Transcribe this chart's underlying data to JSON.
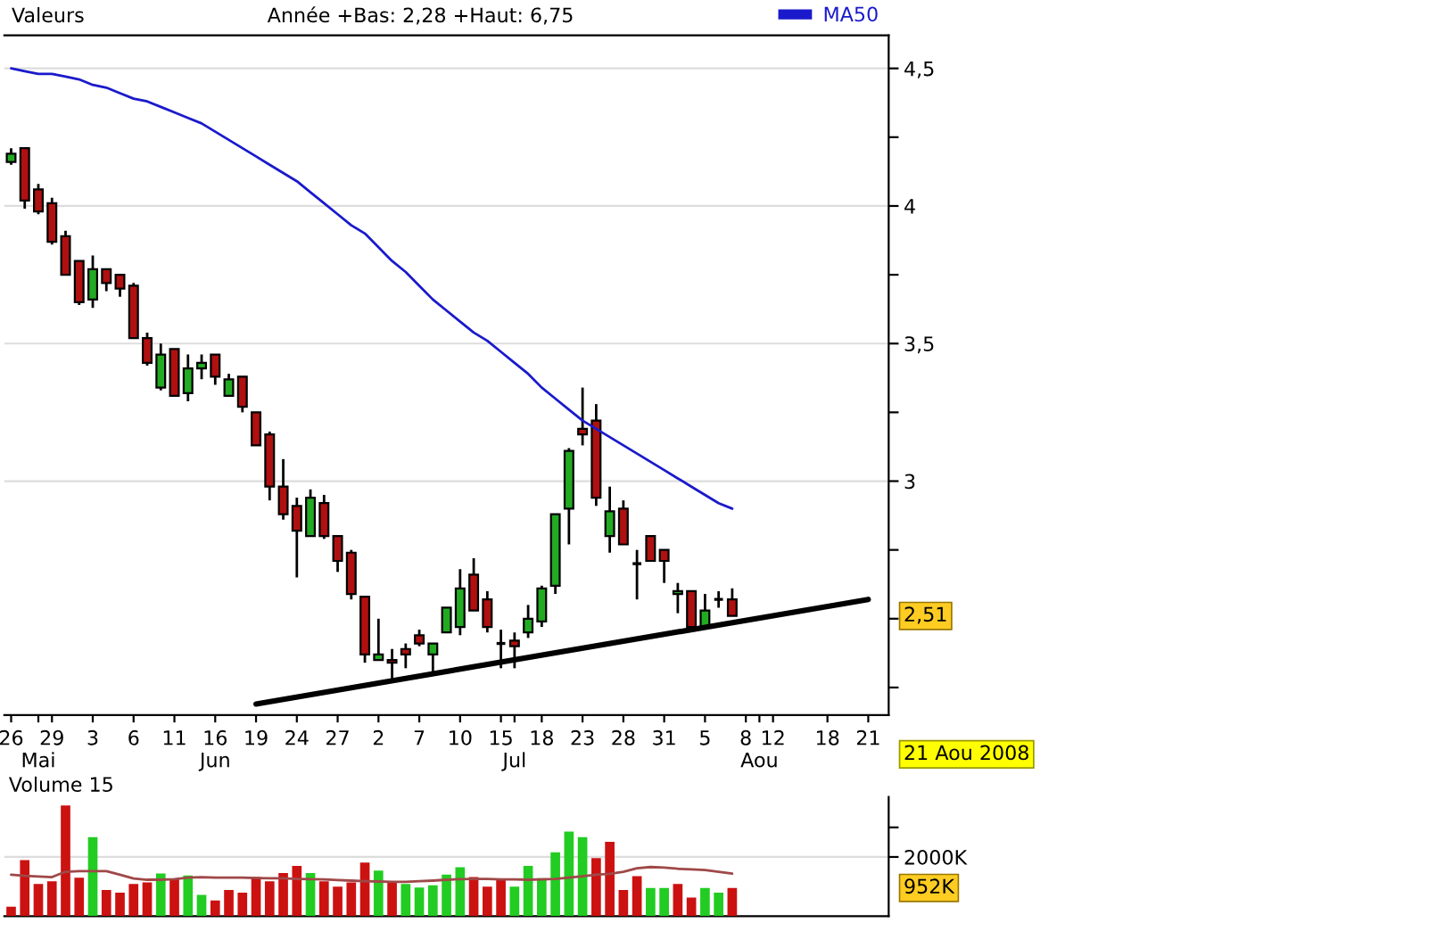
{
  "chart_data": [
    {
      "type": "candlestick",
      "title": "Valeurs",
      "subtitle": "Année +Bas: 2,28 +Haut: 6,75",
      "categories": [
        "26",
        null,
        "\nMai",
        "29",
        null,
        null,
        "3",
        null,
        null,
        "6",
        null,
        null,
        "11",
        null,
        null,
        "16\nJun",
        null,
        null,
        "19",
        null,
        null,
        "24",
        null,
        null,
        "27",
        null,
        null,
        "2",
        null,
        null,
        "7",
        null,
        null,
        "10",
        null,
        null,
        "15",
        "\nJul",
        null,
        "18",
        null,
        null,
        "23",
        null,
        null,
        "28",
        null,
        null,
        "31",
        null,
        null,
        "5",
        null,
        null,
        "8",
        "\nAou",
        "12",
        null,
        null,
        null,
        "18",
        null,
        null,
        "21",
        null
      ],
      "ohlc": [
        [
          4.16,
          4.21,
          4.15,
          4.19
        ],
        [
          4.21,
          4.21,
          3.99,
          4.02
        ],
        [
          4.06,
          4.08,
          3.97,
          3.98
        ],
        [
          4.01,
          4.03,
          3.86,
          3.87
        ],
        [
          3.89,
          3.91,
          3.75,
          3.75
        ],
        [
          3.8,
          3.8,
          3.64,
          3.65
        ],
        [
          3.66,
          3.82,
          3.63,
          3.77
        ],
        [
          3.77,
          3.77,
          3.69,
          3.72
        ],
        [
          3.75,
          3.75,
          3.67,
          3.7
        ],
        [
          3.71,
          3.72,
          3.52,
          3.52
        ],
        [
          3.52,
          3.54,
          3.42,
          3.43
        ],
        [
          3.34,
          3.5,
          3.33,
          3.46
        ],
        [
          3.48,
          3.48,
          3.31,
          3.31
        ],
        [
          3.32,
          3.46,
          3.29,
          3.41
        ],
        [
          3.41,
          3.46,
          3.37,
          3.43
        ],
        [
          3.46,
          3.46,
          3.35,
          3.38
        ],
        [
          3.31,
          3.39,
          3.31,
          3.37
        ],
        [
          3.38,
          3.38,
          3.25,
          3.27
        ],
        [
          3.25,
          3.25,
          3.13,
          3.13
        ],
        [
          3.17,
          3.18,
          2.93,
          2.98
        ],
        [
          2.98,
          3.08,
          2.86,
          2.88
        ],
        [
          2.91,
          2.94,
          2.65,
          2.82
        ],
        [
          2.8,
          2.97,
          2.8,
          2.94
        ],
        [
          2.92,
          2.95,
          2.79,
          2.8
        ],
        [
          2.8,
          2.8,
          2.67,
          2.71
        ],
        [
          2.74,
          2.75,
          2.57,
          2.59
        ],
        [
          2.58,
          2.58,
          2.34,
          2.37
        ],
        [
          2.35,
          2.5,
          2.35,
          2.37
        ],
        [
          2.35,
          2.39,
          2.28,
          2.34
        ],
        [
          2.39,
          2.41,
          2.32,
          2.37
        ],
        [
          2.44,
          2.46,
          2.4,
          2.41
        ],
        [
          2.37,
          2.41,
          2.3,
          2.41
        ],
        [
          2.45,
          2.54,
          2.45,
          2.54
        ],
        [
          2.47,
          2.68,
          2.44,
          2.61
        ],
        [
          2.66,
          2.72,
          2.53,
          2.53
        ],
        [
          2.57,
          2.6,
          2.45,
          2.47
        ],
        [
          2.41,
          2.46,
          2.32,
          2.41
        ],
        [
          2.42,
          2.45,
          2.32,
          2.4
        ],
        [
          2.45,
          2.55,
          2.43,
          2.5
        ],
        [
          2.49,
          2.62,
          2.47,
          2.61
        ],
        [
          2.62,
          2.88,
          2.59,
          2.88
        ],
        [
          2.9,
          3.12,
          2.77,
          3.11
        ],
        [
          3.19,
          3.34,
          3.13,
          3.17
        ],
        [
          3.22,
          3.28,
          2.91,
          2.94
        ],
        [
          2.8,
          2.98,
          2.74,
          2.89
        ],
        [
          2.9,
          2.93,
          2.77,
          2.77
        ],
        [
          2.7,
          2.75,
          2.57,
          2.7
        ],
        [
          2.8,
          2.8,
          2.71,
          2.71
        ],
        [
          2.75,
          2.75,
          2.63,
          2.71
        ],
        [
          2.59,
          2.63,
          2.52,
          2.6
        ],
        [
          2.6,
          2.6,
          2.47,
          2.47
        ],
        [
          2.47,
          2.59,
          2.47,
          2.53
        ],
        [
          2.57,
          2.6,
          2.54,
          2.57
        ],
        [
          2.57,
          2.61,
          2.51,
          2.51
        ],
        null,
        null,
        null,
        null,
        null,
        null,
        null,
        null,
        null,
        null,
        null
      ],
      "colors": [
        "#22aa22",
        "#b01010",
        "#b01010",
        "#b01010",
        "#b01010",
        "#b01010",
        "#22aa22",
        "#b01010",
        "#b01010",
        "#b01010",
        "#b01010",
        "#22aa22",
        "#b01010",
        "#22aa22",
        "#22aa22",
        "#b01010",
        "#22aa22",
        "#b01010",
        "#b01010",
        "#b01010",
        "#b01010",
        "#b01010",
        "#22aa22",
        "#b01010",
        "#b01010",
        "#b01010",
        "#b01010",
        "#22aa22",
        "#b01010",
        "#b01010",
        "#b01010",
        "#22aa22",
        "#22aa22",
        "#22aa22",
        "#b01010",
        "#b01010",
        "#000000",
        "#b01010",
        "#22aa22",
        "#22aa22",
        "#22aa22",
        "#22aa22",
        "#b01010",
        "#b01010",
        "#22aa22",
        "#b01010",
        "#000000",
        "#b01010",
        "#b01010",
        "#22aa22",
        "#b01010",
        "#22aa22",
        "#000000",
        "#b01010",
        null,
        null,
        null,
        null,
        null,
        null,
        null,
        null,
        null,
        null,
        null
      ],
      "series": [
        {
          "type": "line",
          "name": "MA50",
          "color": "#1a1acc",
          "values": [
            4.5,
            4.49,
            4.48,
            4.48,
            4.47,
            4.46,
            4.44,
            4.43,
            4.41,
            4.39,
            4.38,
            4.36,
            4.34,
            4.32,
            4.3,
            4.27,
            4.24,
            4.21,
            4.18,
            4.15,
            4.12,
            4.09,
            4.05,
            4.01,
            3.97,
            3.93,
            3.9,
            3.85,
            3.8,
            3.76,
            3.71,
            3.66,
            3.62,
            3.58,
            3.54,
            3.51,
            3.47,
            3.43,
            3.39,
            3.34,
            3.3,
            3.26,
            3.22,
            3.19,
            3.16,
            3.13,
            3.1,
            3.07,
            3.04,
            3.01,
            2.98,
            2.95,
            2.92,
            2.9,
            null,
            null,
            null,
            null,
            null,
            null,
            null,
            null,
            null,
            null,
            null
          ]
        },
        {
          "type": "line",
          "color": "#000000",
          "x": [
            "19",
            "21"
          ],
          "values": [
            2.19,
            2.57
          ]
        }
      ],
      "ylim": [
        2.15,
        4.62
      ],
      "yticks": [
        {
          "value": 2.25,
          "label": null
        },
        {
          "value": 2.5,
          "label": null
        },
        {
          "value": 2.75,
          "label": null
        },
        {
          "value": 3,
          "label": "3"
        },
        {
          "value": 3.25,
          "label": null
        },
        {
          "value": 3.5,
          "label": "3,5"
        },
        {
          "value": 3.75,
          "label": null
        },
        {
          "value": 4,
          "label": "4"
        },
        {
          "value": 4.25,
          "label": null
        },
        {
          "value": 4.5,
          "label": "4,5"
        }
      ],
      "grid": "y",
      "legend": "top",
      "annotations": [
        "2,51",
        "21 Aou 2008"
      ]
    },
    {
      "type": "bar",
      "title": "Volume 15",
      "categories": [
        null,
        null,
        null,
        null,
        null,
        null,
        null,
        null,
        null,
        null,
        null,
        null,
        null,
        null,
        null,
        null,
        null,
        null,
        null,
        null,
        null,
        null,
        null,
        null,
        null,
        null,
        null,
        null,
        null,
        null,
        null,
        null,
        null,
        null,
        null,
        null,
        null,
        null,
        null,
        null,
        null,
        null,
        null,
        null,
        null,
        null,
        null,
        null,
        null,
        null,
        null,
        null,
        null,
        null,
        null,
        null,
        null,
        null,
        null,
        null,
        null,
        null,
        null,
        null,
        null
      ],
      "values": [
        320,
        1890,
        1090,
        1180,
        3740,
        1300,
        2670,
        880,
        790,
        1090,
        1140,
        1440,
        1250,
        1370,
        720,
        530,
        880,
        790,
        1320,
        1180,
        1460,
        1700,
        1460,
        1180,
        1000,
        1140,
        1810,
        1540,
        1180,
        1090,
        970,
        1040,
        1400,
        1650,
        1320,
        1000,
        1230,
        1000,
        1700,
        1280,
        2160,
        2860,
        2670,
        1960,
        2510,
        880,
        1350,
        950,
        950,
        1090,
        630,
        950,
        790,
        952,
        null,
        null,
        null,
        null,
        null,
        null,
        null,
        null,
        null,
        null,
        null
      ],
      "colors": [
        "#cc1111",
        "#cc1111",
        "#cc1111",
        "#cc1111",
        "#cc1111",
        "#cc1111",
        "#22cc22",
        "#cc1111",
        "#cc1111",
        "#cc1111",
        "#cc1111",
        "#22cc22",
        "#cc1111",
        "#22cc22",
        "#22cc22",
        "#cc1111",
        "#cc1111",
        "#cc1111",
        "#cc1111",
        "#cc1111",
        "#cc1111",
        "#cc1111",
        "#22cc22",
        "#cc1111",
        "#cc1111",
        "#cc1111",
        "#cc1111",
        "#22cc22",
        "#cc1111",
        "#22cc22",
        "#22cc22",
        "#22cc22",
        "#22cc22",
        "#22cc22",
        "#cc1111",
        "#cc1111",
        "#cc1111",
        "#22cc22",
        "#22cc22",
        "#22cc22",
        "#22cc22",
        "#22cc22",
        "#22cc22",
        "#cc1111",
        "#cc1111",
        "#cc1111",
        "#cc1111",
        "#22cc22",
        "#22cc22",
        "#cc1111",
        "#cc1111",
        "#22cc22",
        "#22cc22",
        "#cc1111",
        null,
        null,
        null,
        null,
        null,
        null,
        null,
        null,
        null,
        null,
        null
      ],
      "series": [
        {
          "type": "line",
          "color": "#a04848",
          "values": [
            1400,
            1360,
            1340,
            1320,
            1500,
            1520,
            1520,
            1520,
            1400,
            1270,
            1230,
            1230,
            1250,
            1300,
            1320,
            1300,
            1300,
            1300,
            1290,
            1280,
            1280,
            1260,
            1250,
            1240,
            1220,
            1200,
            1180,
            1170,
            1160,
            1160,
            1180,
            1200,
            1230,
            1250,
            1260,
            1260,
            1240,
            1240,
            1230,
            1240,
            1260,
            1300,
            1350,
            1400,
            1430,
            1500,
            1620,
            1660,
            1640,
            1600,
            1580,
            1560,
            1500,
            1440,
            null,
            null,
            null,
            null,
            null,
            null,
            null,
            null,
            null,
            null,
            null
          ]
        }
      ],
      "ylim": [
        0,
        4030
      ],
      "yticks": [
        {
          "value": 2000,
          "label": "2000K"
        },
        {
          "value": 3000,
          "label": null
        }
      ],
      "grid": "y",
      "tick_labels": "y",
      "annotations": [
        "952K"
      ]
    }
  ]
}
